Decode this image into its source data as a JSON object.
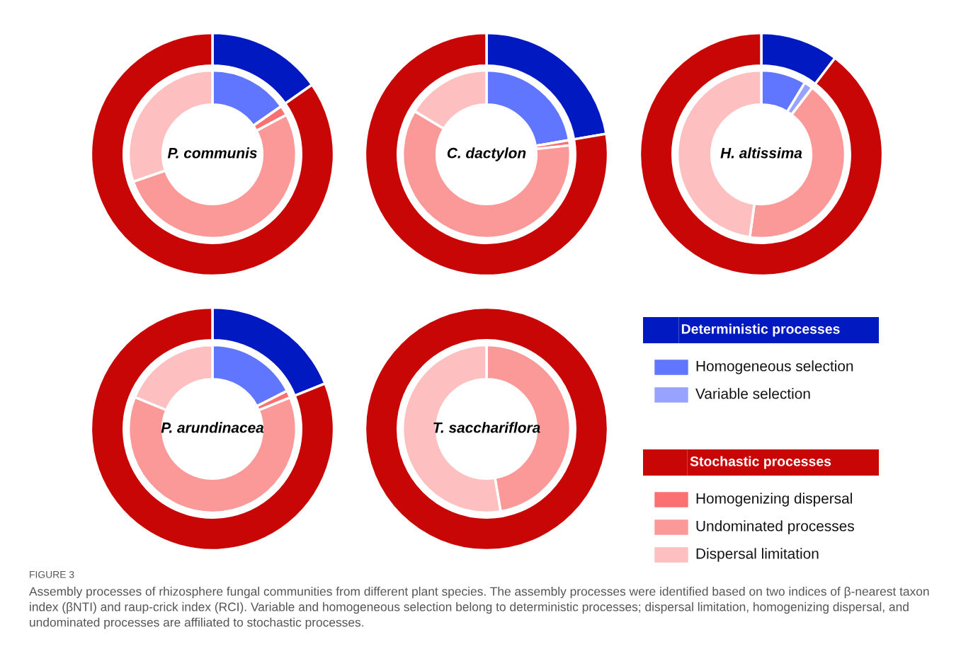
{
  "chart_data": [
    {
      "type": "donut",
      "title": "P. communis",
      "legend": "right",
      "categories": [
        "Deterministic processes",
        "Homogeneous selection",
        "Variable selection",
        "Stochastic processes",
        "Homogenizing dispersal",
        "Undominated processes",
        "Dispersal limitation"
      ],
      "colors": [
        "#0019c0",
        "#6176ff",
        "#98a3ff",
        "#c80606",
        "#fb7070",
        "#fb9999",
        "#fdbfbf"
      ],
      "series": [
        {
          "values": [
            15.3,
            null,
            null,
            84.7,
            null,
            null,
            null
          ]
        },
        {
          "values": [
            null,
            15.3,
            0,
            null,
            1.9,
            52.5,
            30.3
          ]
        }
      ]
    },
    {
      "type": "donut",
      "title": "C. dactylon",
      "categories": [
        null,
        null,
        null,
        null,
        null,
        null,
        null
      ],
      "colors": [
        "#0019c0",
        "#6176ff",
        "#98a3ff",
        "#c80606",
        "#fb7070",
        "#fb9999",
        "#fdbfbf"
      ],
      "series": [
        {
          "values": [
            22.3,
            null,
            null,
            77.7,
            null,
            null,
            null
          ]
        },
        {
          "values": [
            null,
            22.3,
            0,
            null,
            1.0,
            60.3,
            16.4
          ]
        }
      ]
    },
    {
      "type": "donut",
      "title": "H. altissima",
      "categories": [
        null,
        null,
        null,
        null,
        null,
        null,
        null
      ],
      "colors": [
        "#0019c0",
        "#6176ff",
        "#98a3ff",
        "#c80606",
        "#fb7070",
        "#fb9999",
        "#fdbfbf"
      ],
      "series": [
        {
          "values": [
            10.4,
            null,
            null,
            89.6,
            null,
            null,
            null
          ]
        },
        {
          "values": [
            null,
            8.7,
            1.7,
            null,
            0,
            41.8,
            47.8
          ]
        }
      ]
    },
    {
      "type": "donut",
      "title": "P. arundinacea",
      "categories": [
        null,
        null,
        null,
        null,
        null,
        null,
        null
      ],
      "colors": [
        "#0019c0",
        "#6176ff",
        "#98a3ff",
        "#c80606",
        "#fb7070",
        "#fb9999",
        "#fdbfbf"
      ],
      "series": [
        {
          "values": [
            18.9,
            null,
            null,
            81.1,
            null,
            null,
            null
          ]
        },
        {
          "values": [
            null,
            17.5,
            0,
            null,
            1.4,
            62.3,
            18.8
          ]
        }
      ]
    },
    {
      "type": "donut",
      "title": "T. sacchariflora",
      "categories": [
        null,
        null,
        null,
        null,
        null,
        null,
        null
      ],
      "colors": [
        "#0019c0",
        "#6176ff",
        "#98a3ff",
        "#c80606",
        "#fb7070",
        "#fb9999",
        "#fdbfbf"
      ],
      "series": [
        {
          "values": [
            0,
            null,
            null,
            100,
            null,
            null,
            null
          ]
        },
        {
          "values": [
            null,
            0,
            0,
            null,
            0,
            47.3,
            52.7
          ]
        }
      ],
      "annotations": [
        "FIGURE 3",
        "Assembly processes of rhizosphere fungal communities from different plant species. The assembly processes were identified based on two indices of β-nearest taxon index (βNTI) and raup-crick index (RCI). Variable and homogeneous selection belong to deterministic processes; dispersal limitation, homogenizing dispersal, and undominated processes are affiliated to stochastic processes."
      ]
    }
  ]
}
